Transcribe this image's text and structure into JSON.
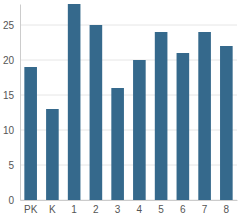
{
  "chart_data": {
    "type": "bar",
    "categories": [
      "PK",
      "K",
      "1",
      "2",
      "3",
      "4",
      "5",
      "6",
      "7",
      "8"
    ],
    "values": [
      19,
      13,
      28,
      25,
      16,
      20,
      24,
      21,
      24,
      22
    ],
    "color": "#35698c",
    "ylim": [
      0,
      28
    ],
    "yticks": [
      0,
      5,
      10,
      15,
      20,
      25
    ],
    "grid": true
  }
}
